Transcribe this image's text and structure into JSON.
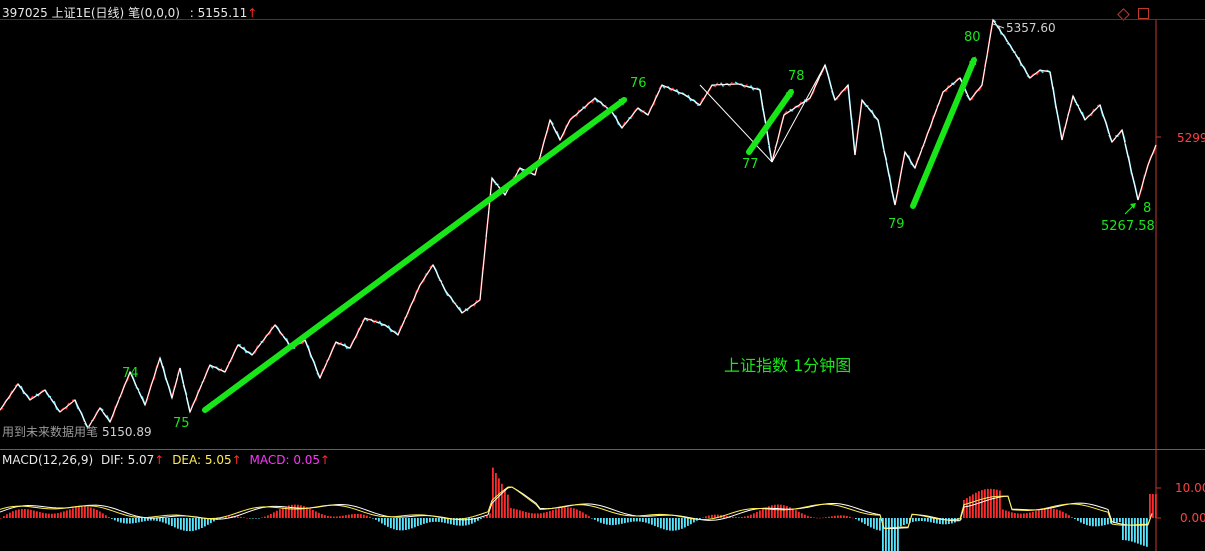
{
  "header": {
    "code": "397025",
    "name": "上证1E(日线)",
    "indicator": "笔(0,0,0)",
    "price": ": 5155.11",
    "arrow": "↑"
  },
  "macd_header": {
    "label": "MACD(12,26,9)",
    "dif": "DIF: 5.07",
    "dea": "DEA: 5.05",
    "macd": "MACD: 0.05",
    "arrow": "↑"
  },
  "colors": {
    "background": "#000000",
    "up": "#ff2a2a",
    "down": "#55e6ff",
    "stroke": "#ffffff",
    "annotation": "#19e619",
    "dea": "#ffee55",
    "macd_label": "#ff33ff",
    "axis": "#c0392b"
  },
  "chart_data": [
    {
      "type": "line",
      "title": "",
      "annotation_text": "上证指数 1分钟图",
      "price_axis_label": "5299",
      "note_text": "用到未来数据用笔",
      "price_points": [
        {
          "label": "5150.89",
          "value": 5150.89
        },
        {
          "label": "5357.60",
          "value": 5357.6
        },
        {
          "label": "5267.58",
          "value": 5267.58
        }
      ],
      "pivot_labels": [
        "74",
        "75",
        "76",
        "77",
        "78",
        "79",
        "80",
        "8"
      ],
      "trend_arrows": [
        {
          "from": "75",
          "to": "76"
        },
        {
          "from": "77",
          "to": "78"
        },
        {
          "from": "79",
          "to": "80"
        }
      ]
    },
    {
      "type": "bar",
      "title": "MACD(12,26,9)",
      "yticks": [
        "10.00",
        "0.00"
      ],
      "ylim": [
        -6,
        18
      ]
    }
  ]
}
